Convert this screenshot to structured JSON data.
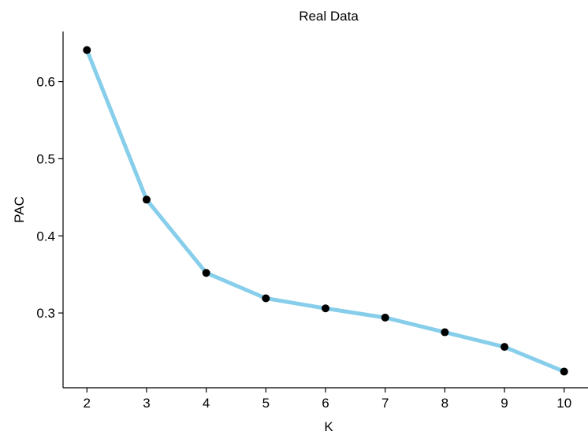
{
  "chart_data": {
    "type": "line",
    "title": "Real Data",
    "xlabel": "K",
    "ylabel": "PAC",
    "x": [
      2,
      3,
      4,
      5,
      6,
      7,
      8,
      9,
      10
    ],
    "series": [
      {
        "values": [
          0.641,
          0.447,
          0.352,
          0.319,
          0.306,
          0.294,
          0.275,
          0.256,
          0.224
        ]
      }
    ],
    "xticks": [
      "2",
      "3",
      "4",
      "5",
      "6",
      "7",
      "8",
      "9",
      "10"
    ],
    "yticks": [
      "0.3",
      "0.4",
      "0.5",
      "0.6"
    ],
    "xlim": [
      1.6,
      10.4
    ],
    "ylim": [
      0.203,
      0.665
    ],
    "grid": false,
    "colors": {
      "line": "#87CEEB",
      "point": "#000000",
      "axis": "#000000"
    }
  }
}
